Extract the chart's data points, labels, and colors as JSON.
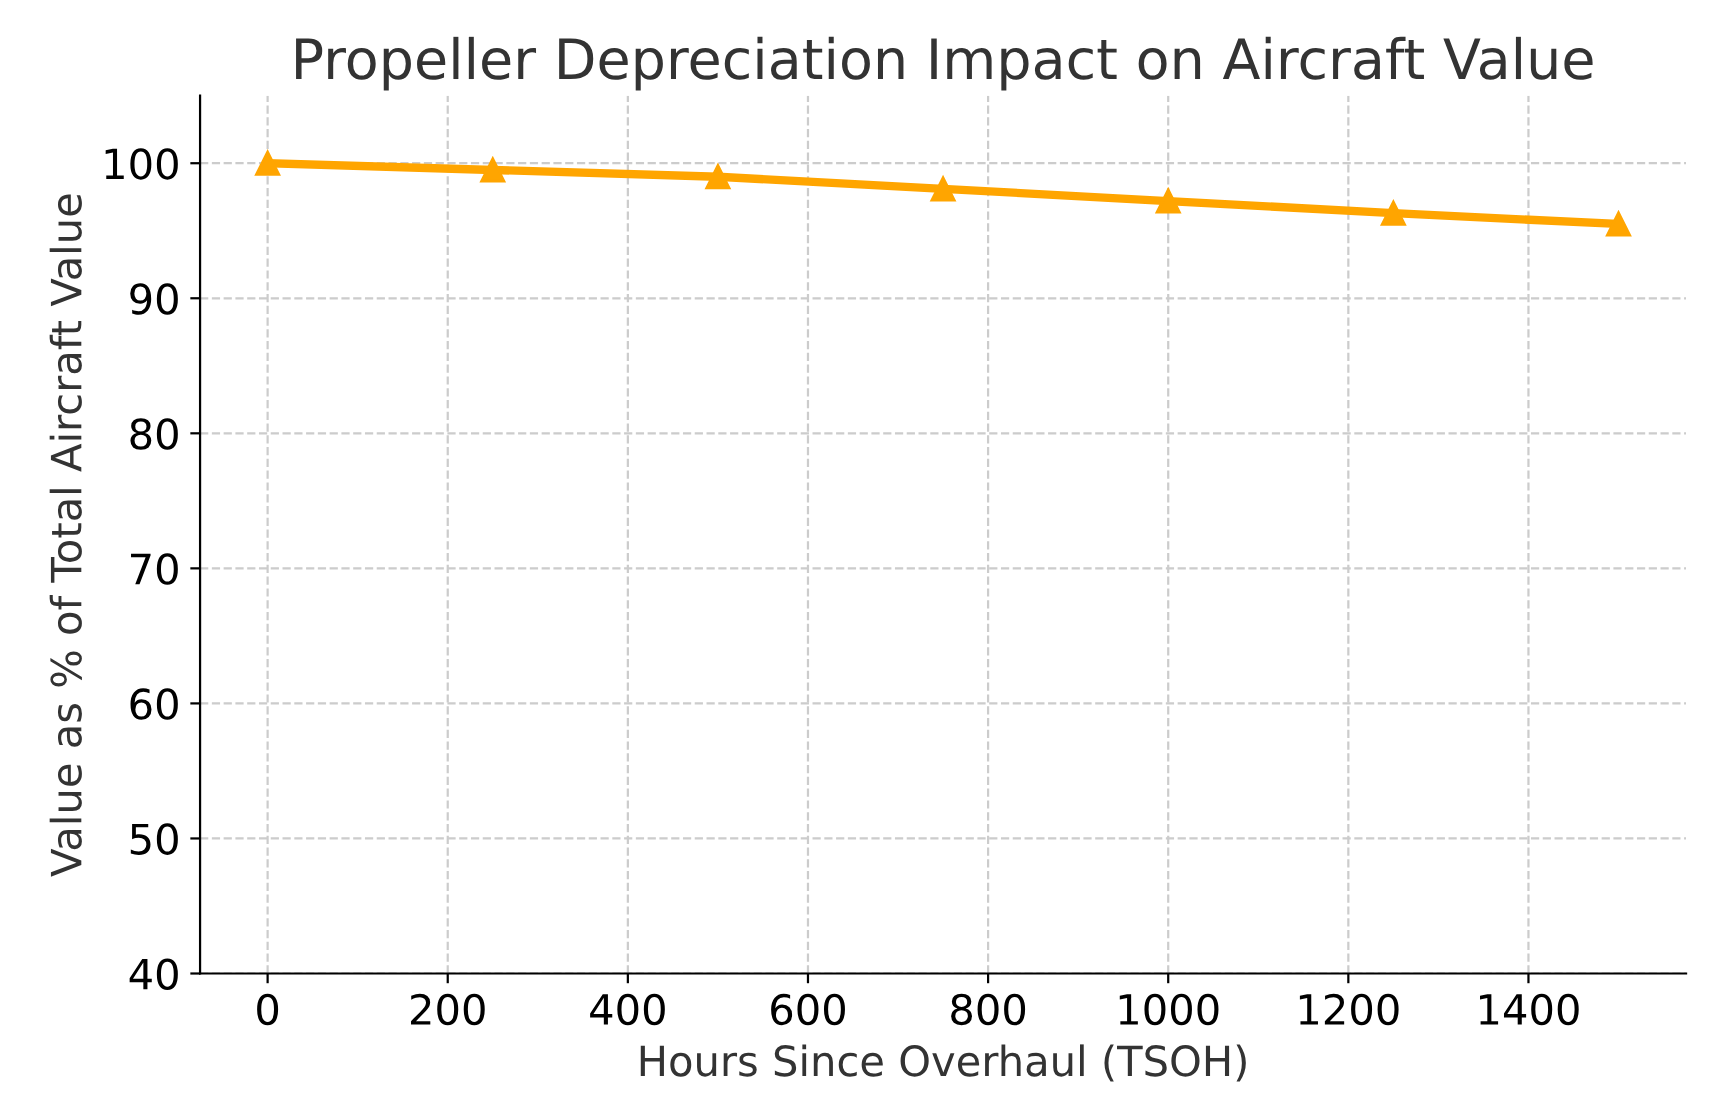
{
  "chart_data": {
    "type": "line",
    "title": "Propeller Depreciation Impact on Aircraft Value",
    "xlabel": "Hours Since Overhaul (TSOH)",
    "ylabel": "Value as % of Total Aircraft Value",
    "x": [
      0,
      250,
      500,
      750,
      1000,
      1250,
      1500
    ],
    "series": [
      {
        "color": "#ffa500",
        "values": [
          100,
          99.5,
          99.0,
          98.1,
          97.2,
          96.3,
          95.5
        ]
      }
    ],
    "xlim": [
      -75,
      1575
    ],
    "ylim": [
      40,
      105
    ],
    "xticks": [
      0,
      200,
      400,
      600,
      800,
      1000,
      1200,
      1400
    ],
    "yticks": [
      40,
      50,
      60,
      70,
      80,
      90,
      100
    ],
    "grid": true,
    "marker": "triangle",
    "line_style": "solid"
  }
}
